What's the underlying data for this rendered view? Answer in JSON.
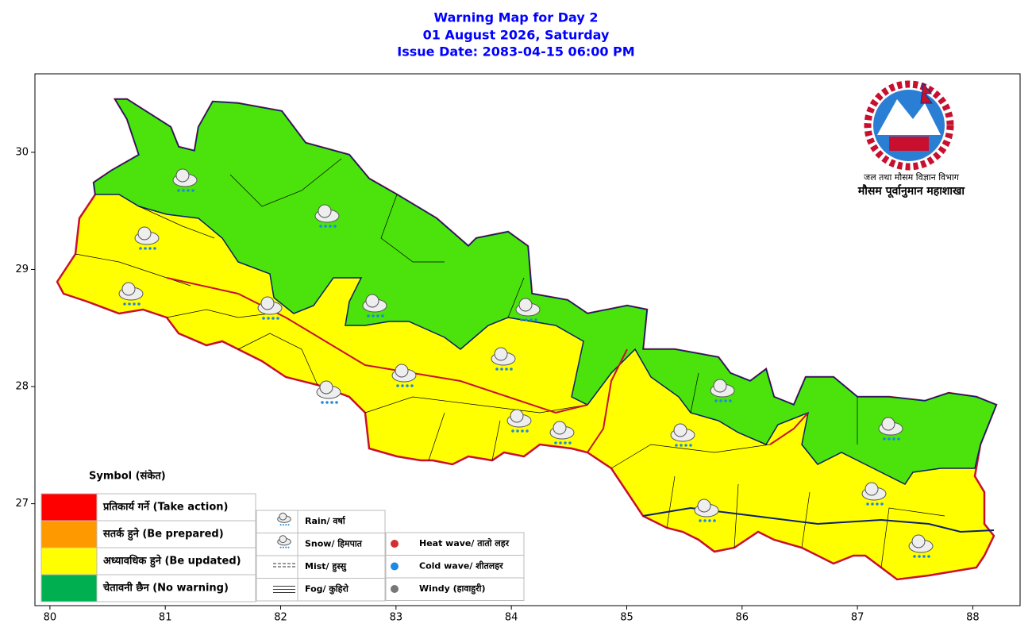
{
  "title": [
    "Warning Map for Day 2",
    "01 August 2026, Saturday",
    "Issue Date: 2083-04-15 06:00 PM"
  ],
  "logo": {
    "line1": "जल तथा मौसम विज्ञान विभाग",
    "line2": "मौसम पूर्वानुमान महाशाखा"
  },
  "axes": {
    "xlim": [
      79.87,
      88.41
    ],
    "ylim": [
      26.13,
      30.67
    ],
    "xticks": [
      80,
      81,
      82,
      83,
      84,
      85,
      86,
      87,
      88
    ],
    "yticks": [
      27,
      28,
      29,
      30
    ]
  },
  "legend": {
    "title": "Symbol (संकेत)",
    "levels": [
      {
        "label": "प्रतिकार्य गर्ने (Take action)",
        "color": "#ff0000"
      },
      {
        "label": "सतर्क हुने (Be prepared)",
        "color": "#ff9900"
      },
      {
        "label": "अध्यावधिक हुने (Be updated)",
        "color": "#ffff00"
      },
      {
        "label": "चेतावनी छैन (No warning)",
        "color": "#00b050"
      }
    ],
    "symbols": [
      "Rain/ वर्षा",
      "Snow/ हिमपात",
      "Mist/ हुस्सु",
      "Fog/ कुहिरो"
    ],
    "symbols2": [
      "Heat wave/ तातो लहर",
      "Cold wave/ शीतलहर",
      "Windy (हावाहुरी)"
    ]
  }
}
